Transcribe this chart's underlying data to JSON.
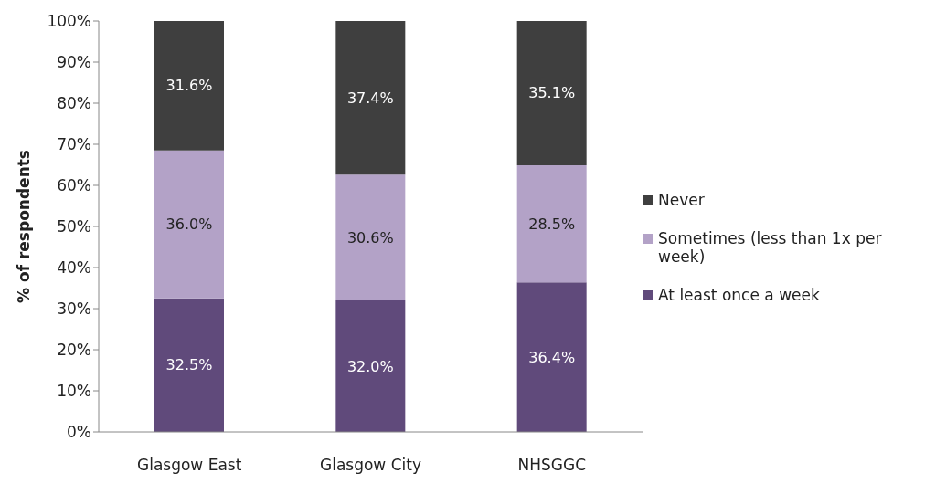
{
  "chart_data": {
    "type": "bar",
    "stacked": true,
    "ylabel": "% of respondents",
    "categories": [
      "Glasgow East",
      "Glasgow City",
      "NHSGGC"
    ],
    "series": [
      {
        "name": "At least once a week",
        "color": "#604a7b",
        "values": [
          32.5,
          32.0,
          36.4
        ],
        "value_labels": [
          "32.5%",
          "32.0%",
          "36.4%"
        ]
      },
      {
        "name": "Sometimes (less than 1x per week)",
        "color": "#b3a2c7",
        "values": [
          36.0,
          30.6,
          28.5
        ],
        "value_labels": [
          "36.0%",
          "30.6%",
          "28.5%"
        ]
      },
      {
        "name": "Never",
        "color": "#3f3f3f",
        "values": [
          31.6,
          37.4,
          35.1
        ],
        "value_labels": [
          "31.6%",
          "37.4%",
          "35.1%"
        ]
      }
    ],
    "ylim": [
      0,
      100
    ],
    "yticks": [
      {
        "value": 0,
        "label": "0%"
      },
      {
        "value": 10,
        "label": "10%"
      },
      {
        "value": 20,
        "label": "20%"
      },
      {
        "value": 30,
        "label": "30%"
      },
      {
        "value": 40,
        "label": "40%"
      },
      {
        "value": 50,
        "label": "50%"
      },
      {
        "value": 60,
        "label": "60%"
      },
      {
        "value": 70,
        "label": "70%"
      },
      {
        "value": 80,
        "label": "80%"
      },
      {
        "value": 90,
        "label": "90%"
      },
      {
        "value": 100,
        "label": "100%"
      }
    ],
    "grid": false,
    "legend": "right"
  }
}
